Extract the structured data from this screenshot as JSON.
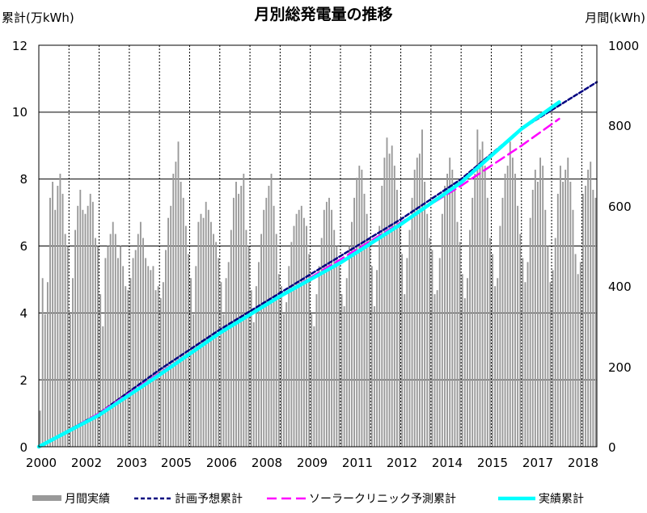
{
  "chart_data": {
    "type": "bar+line",
    "title": "月別総発電量の推移",
    "y_left_label": "累計(万kWh)",
    "y_right_label": "月間(kWh)",
    "y_left_range": [
      0,
      12
    ],
    "y_left_ticks": [
      "0",
      "2",
      "4",
      "6",
      "8",
      "10",
      "12"
    ],
    "y_right_range": [
      0,
      1000
    ],
    "y_right_ticks": [
      "0",
      "200",
      "400",
      "600",
      "800",
      "1000"
    ],
    "x_range": [
      "2000-01",
      "2018-07"
    ],
    "x_ticks": [
      "2000",
      "2002",
      "2003",
      "2005",
      "2006",
      "2008",
      "2009",
      "2011",
      "2012",
      "2014",
      "2015",
      "2017",
      "2018"
    ],
    "grid": true,
    "legend_position": "bottom",
    "colors": {
      "monthly_bar": "#999999",
      "planned": "#000080",
      "solar_clinic": "#ff00ff",
      "actual": "#00ffff",
      "grid": "#000000"
    },
    "series": [
      {
        "name": "月間実績",
        "kind": "bar",
        "axis": "right",
        "start": "2000-01",
        "values": [
          90,
          420,
          330,
          410,
          620,
          660,
          590,
          650,
          680,
          630,
          530,
          500,
          330,
          420,
          540,
          600,
          640,
          590,
          580,
          600,
          630,
          610,
          520,
          500,
          380,
          300,
          470,
          500,
          530,
          560,
          530,
          470,
          500,
          450,
          400,
          390,
          420,
          470,
          490,
          530,
          560,
          520,
          470,
          450,
          440,
          450,
          390,
          400,
          370,
          410,
          490,
          570,
          600,
          680,
          710,
          760,
          660,
          620,
          550,
          480,
          420,
          330,
          450,
          560,
          580,
          570,
          610,
          590,
          560,
          530,
          510,
          470,
          410,
          330,
          420,
          460,
          540,
          620,
          660,
          630,
          650,
          680,
          540,
          500,
          390,
          310,
          400,
          460,
          530,
          590,
          620,
          650,
          680,
          600,
          530,
          430,
          400,
          330,
          360,
          450,
          510,
          550,
          580,
          590,
          600,
          570,
          550,
          480,
          330,
          300,
          380,
          450,
          520,
          590,
          610,
          620,
          590,
          540,
          500,
          450,
          380,
          350,
          420,
          500,
          560,
          620,
          670,
          700,
          690,
          630,
          580,
          520,
          450,
          350,
          440,
          550,
          650,
          720,
          770,
          730,
          750,
          700,
          640,
          560,
          480,
          380,
          470,
          540,
          620,
          690,
          720,
          730,
          790,
          660,
          580,
          520,
          490,
          380,
          390,
          470,
          580,
          650,
          680,
          720,
          690,
          640,
          560,
          510,
          430,
          370,
          420,
          540,
          620,
          680,
          790,
          740,
          760,
          700,
          620,
          520,
          480,
          400,
          420,
          550,
          620,
          680,
          700,
          760,
          720,
          680,
          600,
          530,
          470,
          410,
          460,
          570,
          640,
          690,
          660,
          720,
          700,
          590,
          500,
          410,
          440,
          520,
          630,
          700,
          660,
          690,
          720,
          660,
          590,
          480,
          430,
          460,
          630,
          650,
          690,
          710,
          640,
          620
        ]
      },
      {
        "name": "計画予想累計",
        "kind": "line",
        "axis": "left",
        "points": [
          [
            "2000-01",
            0
          ],
          [
            "2002-01",
            1.0
          ],
          [
            "2004-01",
            2.3
          ],
          [
            "2006-01",
            3.5
          ],
          [
            "2008-01",
            4.6
          ],
          [
            "2010-01",
            5.7
          ],
          [
            "2012-01",
            6.8
          ],
          [
            "2014-01",
            8.0
          ],
          [
            "2016-01",
            9.5
          ],
          [
            "2018-07",
            10.9
          ]
        ]
      },
      {
        "name": "ソーラークリニック予測累計",
        "kind": "line",
        "axis": "left",
        "points": [
          [
            "2000-01",
            0
          ],
          [
            "2002-01",
            1.0
          ],
          [
            "2004-01",
            2.2
          ],
          [
            "2006-01",
            3.4
          ],
          [
            "2008-01",
            4.5
          ],
          [
            "2010-01",
            5.6
          ],
          [
            "2012-01",
            6.7
          ],
          [
            "2014-01",
            7.8
          ],
          [
            "2016-01",
            9.0
          ],
          [
            "2017-04",
            9.8
          ]
        ]
      },
      {
        "name": "実績累計",
        "kind": "line",
        "axis": "left",
        "points": [
          [
            "2000-01",
            0
          ],
          [
            "2002-01",
            0.95
          ],
          [
            "2004-01",
            2.15
          ],
          [
            "2006-01",
            3.4
          ],
          [
            "2008-01",
            4.5
          ],
          [
            "2010-01",
            5.5
          ],
          [
            "2012-01",
            6.65
          ],
          [
            "2014-01",
            7.9
          ],
          [
            "2016-01",
            9.5
          ],
          [
            "2017-04",
            10.3
          ]
        ]
      }
    ]
  }
}
